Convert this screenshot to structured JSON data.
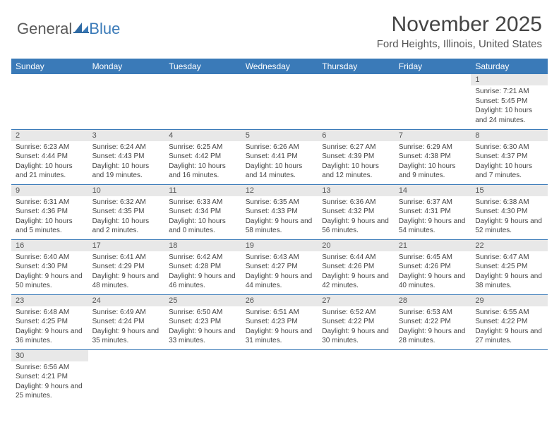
{
  "brand": {
    "general": "General",
    "blue": "Blue",
    "sail_color": "#3a7ab8"
  },
  "title": "November 2025",
  "location": "Ford Heights, Illinois, United States",
  "columns": [
    "Sunday",
    "Monday",
    "Tuesday",
    "Wednesday",
    "Thursday",
    "Friday",
    "Saturday"
  ],
  "header_bg": "#3a7ab8",
  "header_fg": "#ffffff",
  "daybar_bg": "#e8e8e8",
  "row_divider": "#3a7ab8",
  "text_color": "#444444",
  "weeks": [
    [
      null,
      null,
      null,
      null,
      null,
      null,
      {
        "n": "1",
        "sunrise": "Sunrise: 7:21 AM",
        "sunset": "Sunset: 5:45 PM",
        "daylight": "Daylight: 10 hours and 24 minutes."
      }
    ],
    [
      {
        "n": "2",
        "sunrise": "Sunrise: 6:23 AM",
        "sunset": "Sunset: 4:44 PM",
        "daylight": "Daylight: 10 hours and 21 minutes."
      },
      {
        "n": "3",
        "sunrise": "Sunrise: 6:24 AM",
        "sunset": "Sunset: 4:43 PM",
        "daylight": "Daylight: 10 hours and 19 minutes."
      },
      {
        "n": "4",
        "sunrise": "Sunrise: 6:25 AM",
        "sunset": "Sunset: 4:42 PM",
        "daylight": "Daylight: 10 hours and 16 minutes."
      },
      {
        "n": "5",
        "sunrise": "Sunrise: 6:26 AM",
        "sunset": "Sunset: 4:41 PM",
        "daylight": "Daylight: 10 hours and 14 minutes."
      },
      {
        "n": "6",
        "sunrise": "Sunrise: 6:27 AM",
        "sunset": "Sunset: 4:39 PM",
        "daylight": "Daylight: 10 hours and 12 minutes."
      },
      {
        "n": "7",
        "sunrise": "Sunrise: 6:29 AM",
        "sunset": "Sunset: 4:38 PM",
        "daylight": "Daylight: 10 hours and 9 minutes."
      },
      {
        "n": "8",
        "sunrise": "Sunrise: 6:30 AM",
        "sunset": "Sunset: 4:37 PM",
        "daylight": "Daylight: 10 hours and 7 minutes."
      }
    ],
    [
      {
        "n": "9",
        "sunrise": "Sunrise: 6:31 AM",
        "sunset": "Sunset: 4:36 PM",
        "daylight": "Daylight: 10 hours and 5 minutes."
      },
      {
        "n": "10",
        "sunrise": "Sunrise: 6:32 AM",
        "sunset": "Sunset: 4:35 PM",
        "daylight": "Daylight: 10 hours and 2 minutes."
      },
      {
        "n": "11",
        "sunrise": "Sunrise: 6:33 AM",
        "sunset": "Sunset: 4:34 PM",
        "daylight": "Daylight: 10 hours and 0 minutes."
      },
      {
        "n": "12",
        "sunrise": "Sunrise: 6:35 AM",
        "sunset": "Sunset: 4:33 PM",
        "daylight": "Daylight: 9 hours and 58 minutes."
      },
      {
        "n": "13",
        "sunrise": "Sunrise: 6:36 AM",
        "sunset": "Sunset: 4:32 PM",
        "daylight": "Daylight: 9 hours and 56 minutes."
      },
      {
        "n": "14",
        "sunrise": "Sunrise: 6:37 AM",
        "sunset": "Sunset: 4:31 PM",
        "daylight": "Daylight: 9 hours and 54 minutes."
      },
      {
        "n": "15",
        "sunrise": "Sunrise: 6:38 AM",
        "sunset": "Sunset: 4:30 PM",
        "daylight": "Daylight: 9 hours and 52 minutes."
      }
    ],
    [
      {
        "n": "16",
        "sunrise": "Sunrise: 6:40 AM",
        "sunset": "Sunset: 4:30 PM",
        "daylight": "Daylight: 9 hours and 50 minutes."
      },
      {
        "n": "17",
        "sunrise": "Sunrise: 6:41 AM",
        "sunset": "Sunset: 4:29 PM",
        "daylight": "Daylight: 9 hours and 48 minutes."
      },
      {
        "n": "18",
        "sunrise": "Sunrise: 6:42 AM",
        "sunset": "Sunset: 4:28 PM",
        "daylight": "Daylight: 9 hours and 46 minutes."
      },
      {
        "n": "19",
        "sunrise": "Sunrise: 6:43 AM",
        "sunset": "Sunset: 4:27 PM",
        "daylight": "Daylight: 9 hours and 44 minutes."
      },
      {
        "n": "20",
        "sunrise": "Sunrise: 6:44 AM",
        "sunset": "Sunset: 4:26 PM",
        "daylight": "Daylight: 9 hours and 42 minutes."
      },
      {
        "n": "21",
        "sunrise": "Sunrise: 6:45 AM",
        "sunset": "Sunset: 4:26 PM",
        "daylight": "Daylight: 9 hours and 40 minutes."
      },
      {
        "n": "22",
        "sunrise": "Sunrise: 6:47 AM",
        "sunset": "Sunset: 4:25 PM",
        "daylight": "Daylight: 9 hours and 38 minutes."
      }
    ],
    [
      {
        "n": "23",
        "sunrise": "Sunrise: 6:48 AM",
        "sunset": "Sunset: 4:25 PM",
        "daylight": "Daylight: 9 hours and 36 minutes."
      },
      {
        "n": "24",
        "sunrise": "Sunrise: 6:49 AM",
        "sunset": "Sunset: 4:24 PM",
        "daylight": "Daylight: 9 hours and 35 minutes."
      },
      {
        "n": "25",
        "sunrise": "Sunrise: 6:50 AM",
        "sunset": "Sunset: 4:23 PM",
        "daylight": "Daylight: 9 hours and 33 minutes."
      },
      {
        "n": "26",
        "sunrise": "Sunrise: 6:51 AM",
        "sunset": "Sunset: 4:23 PM",
        "daylight": "Daylight: 9 hours and 31 minutes."
      },
      {
        "n": "27",
        "sunrise": "Sunrise: 6:52 AM",
        "sunset": "Sunset: 4:22 PM",
        "daylight": "Daylight: 9 hours and 30 minutes."
      },
      {
        "n": "28",
        "sunrise": "Sunrise: 6:53 AM",
        "sunset": "Sunset: 4:22 PM",
        "daylight": "Daylight: 9 hours and 28 minutes."
      },
      {
        "n": "29",
        "sunrise": "Sunrise: 6:55 AM",
        "sunset": "Sunset: 4:22 PM",
        "daylight": "Daylight: 9 hours and 27 minutes."
      }
    ],
    [
      {
        "n": "30",
        "sunrise": "Sunrise: 6:56 AM",
        "sunset": "Sunset: 4:21 PM",
        "daylight": "Daylight: 9 hours and 25 minutes."
      },
      null,
      null,
      null,
      null,
      null,
      null
    ]
  ]
}
